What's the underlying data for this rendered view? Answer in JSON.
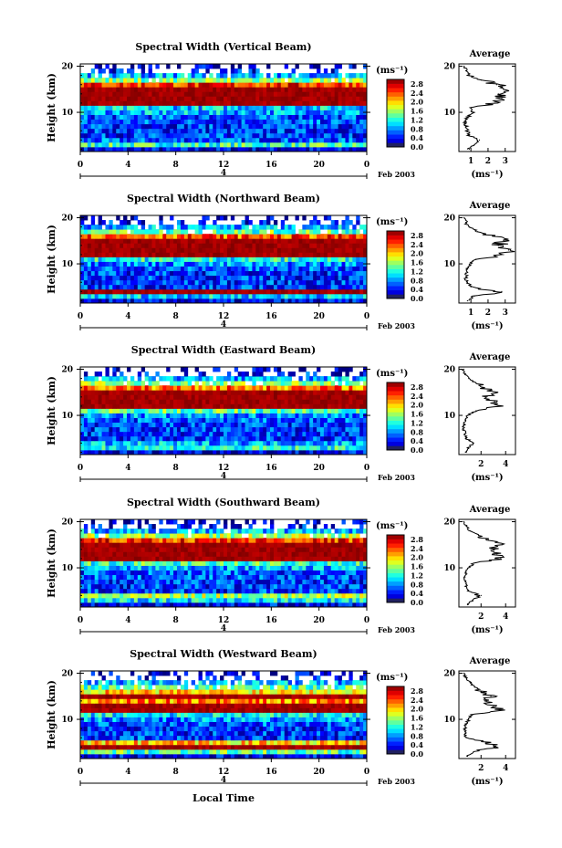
{
  "figure": {
    "x_axis_title": "Local Time",
    "date_label": "Feb 2003",
    "day_label": "4",
    "avg_title": "Average",
    "unit_label": "(ms⁻¹)",
    "y_axis_title": "Height (km)"
  },
  "chart_data": [
    {
      "type": "heatmap",
      "title": "Spectral Width (Vertical Beam)",
      "ylabel": "Height (km)",
      "xlabel": "Local Time",
      "x_ticks": [
        "0",
        "4",
        "8",
        "12",
        "16",
        "20",
        "0"
      ],
      "xlim": [
        0,
        24
      ],
      "y_ticks": [
        "20",
        "10"
      ],
      "ylim": [
        1.5,
        20.5
      ],
      "colorbar": {
        "label": "(ms⁻¹)",
        "ticks": [
          "2.8",
          "2.4",
          "2.0",
          "1.6",
          "1.2",
          "0.8",
          "0.4",
          "0.0"
        ],
        "range": [
          0,
          3.0
        ]
      },
      "profile": {
        "title": "Average",
        "x_ticks": [
          "1",
          "2",
          "3"
        ],
        "xlim": [
          0.3,
          3.6
        ],
        "xlabel": "(ms⁻¹)",
        "heights": [
          2,
          3,
          4,
          5,
          6,
          7,
          8,
          9,
          10,
          11,
          12,
          13,
          14,
          15,
          16,
          17,
          18,
          19,
          20
        ],
        "values": [
          0.9,
          1.2,
          1.5,
          0.9,
          0.8,
          0.7,
          0.7,
          0.8,
          1.1,
          1.0,
          2.4,
          2.8,
          2.6,
          2.9,
          2.5,
          1.6,
          0.9,
          0.7,
          0.6
        ]
      },
      "heatmap_levels": [
        [
          0.3,
          1.3,
          0.6,
          0.5,
          0.5,
          0.5,
          0.6,
          0.6,
          0.9,
          1.0,
          2.7,
          2.8,
          2.6,
          2.9,
          2.5,
          1.5,
          0.9,
          0.4,
          0.2
        ]
      ]
    },
    {
      "type": "heatmap",
      "title": "Spectral Width (Northward Beam)",
      "ylabel": "Height (km)",
      "xlabel": "Local Time",
      "x_ticks": [
        "0",
        "4",
        "8",
        "12",
        "16",
        "20",
        "0"
      ],
      "xlim": [
        0,
        24
      ],
      "y_ticks": [
        "20",
        "10"
      ],
      "ylim": [
        1.5,
        20.5
      ],
      "colorbar": {
        "label": "(ms⁻¹)",
        "ticks": [
          "2.8",
          "2.4",
          "2.0",
          "1.6",
          "1.2",
          "0.8",
          "0.4",
          "0.0"
        ],
        "range": [
          0,
          3.0
        ]
      },
      "profile": {
        "title": "Average",
        "x_ticks": [
          "1",
          "2",
          "3"
        ],
        "xlim": [
          0.3,
          3.6
        ],
        "xlabel": "(ms⁻¹)",
        "heights": [
          2,
          3,
          4,
          5,
          6,
          7,
          8,
          9,
          10,
          11,
          12,
          13,
          14,
          15,
          16,
          17,
          18,
          19,
          20
        ],
        "values": [
          0.8,
          1.2,
          2.8,
          1.0,
          0.8,
          0.7,
          0.7,
          0.8,
          1.0,
          1.3,
          2.9,
          3.2,
          2.6,
          2.9,
          2.4,
          1.4,
          0.9,
          0.7,
          0.6
        ]
      },
      "heatmap_levels": [
        [
          0.3,
          1.0,
          2.6,
          0.5,
          0.5,
          0.5,
          0.5,
          0.6,
          0.8,
          1.2,
          2.9,
          2.9,
          2.7,
          2.9,
          2.4,
          1.4,
          0.9,
          0.4,
          0.2
        ]
      ]
    },
    {
      "type": "heatmap",
      "title": "Spectral Width (Eastward Beam)",
      "ylabel": "Height (km)",
      "xlabel": "Local Time",
      "x_ticks": [
        "0",
        "4",
        "8",
        "12",
        "16",
        "20",
        "0"
      ],
      "xlim": [
        0,
        24
      ],
      "y_ticks": [
        "20",
        "10"
      ],
      "ylim": [
        1.5,
        20.5
      ],
      "colorbar": {
        "label": "(ms⁻¹)",
        "ticks": [
          "2.8",
          "2.4",
          "2.0",
          "1.6",
          "1.2",
          "0.8",
          "0.4",
          "0.0"
        ],
        "range": [
          0,
          3.0
        ]
      },
      "profile": {
        "title": "Average",
        "x_ticks": [
          "2",
          "4"
        ],
        "xlim": [
          0.2,
          4.8
        ],
        "xlabel": "(ms⁻¹)",
        "heights": [
          2,
          3,
          4,
          5,
          6,
          7,
          8,
          9,
          10,
          11,
          12,
          13,
          14,
          15,
          16,
          17,
          18,
          19,
          20
        ],
        "values": [
          0.8,
          1.0,
          1.4,
          0.8,
          0.7,
          0.6,
          0.6,
          0.7,
          0.9,
          1.6,
          3.4,
          3.1,
          2.4,
          3.3,
          2.2,
          1.6,
          1.0,
          0.7,
          0.6
        ]
      },
      "heatmap_levels": [
        [
          0.3,
          1.2,
          0.9,
          0.5,
          0.5,
          0.5,
          0.5,
          0.6,
          0.8,
          1.4,
          2.9,
          2.9,
          2.8,
          2.9,
          2.3,
          1.5,
          0.9,
          0.4,
          0.2
        ]
      ]
    },
    {
      "type": "heatmap",
      "title": "Spectral Width (Southward Beam)",
      "ylabel": "Height (km)",
      "xlabel": "Local Time",
      "x_ticks": [
        "0",
        "4",
        "8",
        "12",
        "16",
        "20",
        "0"
      ],
      "xlim": [
        0,
        24
      ],
      "y_ticks": [
        "20",
        "10"
      ],
      "ylim": [
        1.5,
        20.5
      ],
      "colorbar": {
        "label": "(ms⁻¹)",
        "ticks": [
          "2.8",
          "2.4",
          "2.0",
          "1.6",
          "1.2",
          "0.8",
          "0.4",
          "0.0"
        ],
        "range": [
          0,
          3.0
        ]
      },
      "profile": {
        "title": "Average",
        "x_ticks": [
          "2",
          "4"
        ],
        "xlim": [
          0.2,
          4.8
        ],
        "xlabel": "(ms⁻¹)",
        "heights": [
          2,
          3,
          4,
          5,
          6,
          7,
          8,
          9,
          10,
          11,
          12,
          13,
          14,
          15,
          16,
          17,
          18,
          19,
          20
        ],
        "values": [
          0.9,
          1.3,
          2.0,
          1.0,
          0.8,
          0.7,
          0.7,
          0.8,
          1.0,
          1.4,
          3.6,
          3.3,
          2.8,
          3.7,
          2.6,
          1.8,
          1.1,
          0.8,
          0.6
        ]
      },
      "heatmap_levels": [
        [
          0.3,
          1.1,
          1.6,
          0.5,
          0.5,
          0.5,
          0.6,
          0.6,
          0.9,
          1.3,
          2.9,
          2.9,
          2.8,
          2.9,
          2.5,
          1.6,
          0.9,
          0.4,
          0.2
        ]
      ]
    },
    {
      "type": "heatmap",
      "title": "Spectral Width (Westward Beam)",
      "ylabel": "Height (km)",
      "xlabel": "Local Time",
      "x_ticks": [
        "0",
        "4",
        "8",
        "12",
        "16",
        "20",
        "0"
      ],
      "xlim": [
        0,
        24
      ],
      "y_ticks": [
        "20",
        "10"
      ],
      "ylim": [
        1.5,
        20.5
      ],
      "colorbar": {
        "label": "(ms⁻¹)",
        "ticks": [
          "2.8",
          "2.4",
          "2.0",
          "1.6",
          "1.2",
          "0.8",
          "0.4",
          "0.0"
        ],
        "range": [
          0,
          3.0
        ]
      },
      "profile": {
        "title": "Average",
        "x_ticks": [
          "2",
          "4"
        ],
        "xlim": [
          0.2,
          4.8
        ],
        "xlabel": "(ms⁻¹)",
        "heights": [
          2,
          3,
          4,
          5,
          6,
          7,
          8,
          9,
          10,
          11,
          12,
          13,
          14,
          15,
          16,
          17,
          18,
          19,
          20
        ],
        "values": [
          0.9,
          1.4,
          3.3,
          2.4,
          0.8,
          0.7,
          0.7,
          0.8,
          1.0,
          1.2,
          3.5,
          3.0,
          2.3,
          2.8,
          2.0,
          1.5,
          1.1,
          0.8,
          0.6
        ]
      },
      "heatmap_levels": [
        [
          0.3,
          1.4,
          2.7,
          2.0,
          0.5,
          0.5,
          0.5,
          0.6,
          0.8,
          1.1,
          2.9,
          2.7,
          2.2,
          2.8,
          2.0,
          1.4,
          0.9,
          0.4,
          0.2
        ]
      ]
    }
  ]
}
